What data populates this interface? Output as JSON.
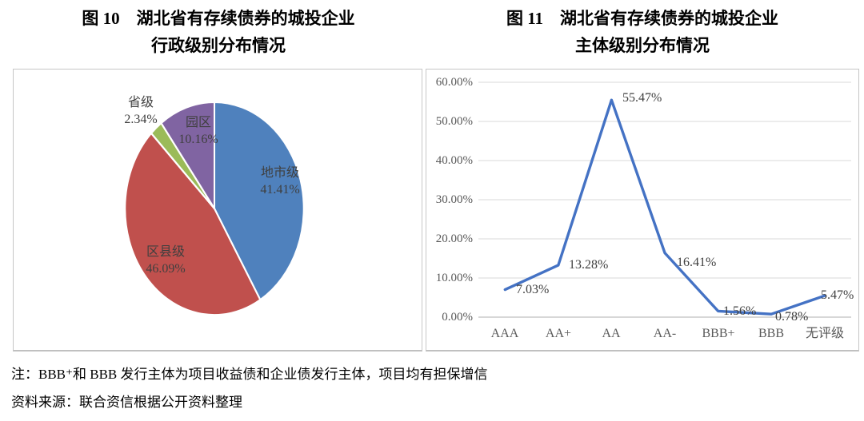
{
  "figure10": {
    "title_line1": "图 10　湖北省有存续债券的城投企业",
    "title_line2": "行政级别分布情况"
  },
  "figure11": {
    "title_line1": "图 11　湖北省有存续债券的城投企业",
    "title_line2": "主体级别分布情况"
  },
  "notes": {
    "note": "注：BBB⁺和 BBB 发行主体为项目收益债和企业债发行主体，项目均有担保增信",
    "source": "资料来源：联合资信根据公开资料整理"
  },
  "chart_data": [
    {
      "type": "pie",
      "title": "图 10 湖北省有存续债券的城投企业行政级别分布情况",
      "labels": [
        "地市级",
        "区县级",
        "省级",
        "园区"
      ],
      "values": [
        41.41,
        46.09,
        2.34,
        10.16
      ],
      "pct_labels": [
        "41.41%",
        "46.09%",
        "2.34%",
        "10.16%"
      ],
      "colors": [
        "#4F81BD",
        "#C0504D",
        "#9BBB59",
        "#8064A2"
      ],
      "unit": "%",
      "start_angle_deg": 0,
      "direction": "clockwise",
      "slice_border_color": "#FFFFFF",
      "legend": "none"
    },
    {
      "type": "line",
      "title": "图 11 湖北省有存续债券的城投企业主体级别分布情况",
      "categories": [
        "AAA",
        "AA+",
        "AA",
        "AA-",
        "BBB+",
        "BBB",
        "无评级"
      ],
      "values": [
        7.03,
        13.28,
        55.47,
        16.41,
        1.56,
        0.78,
        5.47
      ],
      "data_labels": [
        "7.03%",
        "13.28%",
        "55.47%",
        "16.41%",
        "1.56%",
        "0.78%",
        "5.47%"
      ],
      "ylim": [
        0,
        60
      ],
      "ytick_step": 10,
      "ytick_labels": [
        "0.00%",
        "10.00%",
        "20.00%",
        "30.00%",
        "40.00%",
        "50.00%",
        "60.00%"
      ],
      "line_color": "#4472C4",
      "gridline_color": "#D9D9D9",
      "axis_color": "#BFBFBF",
      "grid": true,
      "legend": "none",
      "markers": false
    }
  ]
}
